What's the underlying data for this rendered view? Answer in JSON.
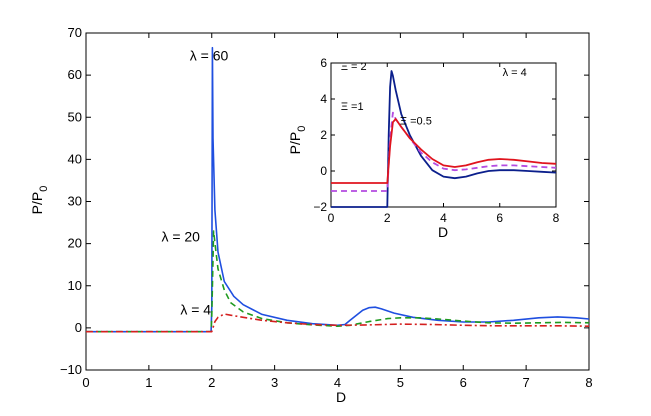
{
  "chart_data": [
    {
      "type": "line",
      "xlabel": "D",
      "ylabel": "P/P",
      "ylabel_sub": "0",
      "xlim": [
        0,
        8
      ],
      "ylim": [
        -10,
        70
      ],
      "xticks": [
        "0",
        "1",
        "2",
        "3",
        "4",
        "5",
        "6",
        "7",
        "8"
      ],
      "yticks": [
        "−10",
        "0",
        "10",
        "20",
        "30",
        "40",
        "50",
        "60",
        "70"
      ],
      "annotations": [
        {
          "text": "λ = 60",
          "x": 1.65,
          "y": 63.5
        },
        {
          "text": "λ = 20",
          "x": 1.2,
          "y": 20.5
        },
        {
          "text": "λ = 4",
          "x": 1.5,
          "y": 3.2
        }
      ],
      "series": [
        {
          "label_ref": "λ = 60",
          "color": "#1f4fe0",
          "dash": "solid",
          "x": [
            0,
            1.99,
            2.0,
            2.01,
            2.02,
            2.05,
            2.1,
            2.2,
            2.35,
            2.5,
            2.8,
            3.2,
            3.6,
            4.0,
            4.12,
            4.2,
            4.3,
            4.4,
            4.5,
            4.6,
            4.7,
            4.9,
            5.2,
            5.6,
            6.0,
            6.4,
            6.8,
            7.2,
            7.5,
            7.8,
            8.0
          ],
          "y": [
            -0.9,
            -0.9,
            5,
            66.5,
            45,
            28,
            18,
            11,
            7.5,
            5.5,
            3.2,
            1.8,
            1.0,
            0.6,
            0.8,
            1.8,
            3.0,
            4.2,
            4.8,
            4.9,
            4.5,
            3.5,
            2.5,
            1.8,
            1.4,
            1.4,
            1.8,
            2.4,
            2.6,
            2.4,
            2.1
          ]
        },
        {
          "label_ref": "λ = 20",
          "color": "#1f9a1f",
          "dash": "dashed",
          "x": [
            0,
            1.99,
            2.0,
            2.03,
            2.06,
            2.1,
            2.2,
            2.3,
            2.5,
            2.8,
            3.2,
            3.6,
            4.0,
            4.2,
            4.5,
            4.8,
            5.0,
            5.3,
            5.6,
            6.0,
            6.4,
            6.8,
            7.2,
            7.6,
            8.0
          ],
          "y": [
            -0.9,
            -0.9,
            3,
            23,
            19,
            14,
            9,
            6,
            3.8,
            2.2,
            1.2,
            0.7,
            0.4,
            0.6,
            1.5,
            2.2,
            2.4,
            2.4,
            2.1,
            1.6,
            1.2,
            1.1,
            1.2,
            1.3,
            1.2
          ]
        },
        {
          "label_ref": "λ = 4",
          "color": "#d42020",
          "dash": "dashdot",
          "x": [
            0,
            1.99,
            2.0,
            2.05,
            2.1,
            2.2,
            2.3,
            2.5,
            2.8,
            3.2,
            3.6,
            4.0,
            4.5,
            5.0,
            5.5,
            6.0,
            6.5,
            7.0,
            7.5,
            8.0
          ],
          "y": [
            -0.9,
            -0.9,
            -0.9,
            1.5,
            2.5,
            3.3,
            3.0,
            2.5,
            1.8,
            1.2,
            0.8,
            0.6,
            0.7,
            0.9,
            0.8,
            0.6,
            0.5,
            0.5,
            0.5,
            0.4
          ]
        }
      ]
    },
    {
      "type": "line",
      "inset": true,
      "xlabel": "D",
      "ylabel": "P/P",
      "ylabel_sub": "0",
      "xlim": [
        0,
        8
      ],
      "ylim": [
        -2,
        7
      ],
      "xticks": [
        "0",
        "2",
        "4",
        "6",
        "8"
      ],
      "yticks": [
        "−2",
        "0",
        "2",
        "4",
        "6"
      ],
      "annotations": [
        {
          "text": "Ξ = 2",
          "x": 0.35,
          "y": 6.55
        },
        {
          "text": "Ξ =1",
          "x": 0.35,
          "y": 4.05
        },
        {
          "text": "Ξ =0.5",
          "x": 2.45,
          "y": 3.15
        },
        {
          "text": "λ = 4",
          "x": 6.1,
          "y": 6.2
        }
      ],
      "series": [
        {
          "label_ref": "Ξ = 2",
          "color": "#0b1f8c",
          "dash": "solid",
          "x": [
            0,
            1.99,
            2.0,
            2.05,
            2.1,
            2.15,
            2.2,
            2.3,
            2.5,
            2.8,
            3.2,
            3.6,
            4.0,
            4.4,
            4.8,
            5.2,
            5.6,
            6.0,
            6.5,
            7.0,
            7.5,
            8.0
          ],
          "y": [
            -2,
            -2,
            -2,
            2.5,
            5.5,
            6.5,
            6.2,
            5.3,
            3.8,
            2.5,
            1.2,
            0.3,
            -0.1,
            -0.2,
            -0.1,
            0.1,
            0.25,
            0.3,
            0.3,
            0.25,
            0.2,
            0.15
          ]
        },
        {
          "label_ref": "Ξ =1",
          "color": "#b44be1",
          "dash": "dashed",
          "x": [
            0,
            1.99,
            2.0,
            2.1,
            2.2,
            2.3,
            2.5,
            2.8,
            3.2,
            3.6,
            4.0,
            4.4,
            4.8,
            5.2,
            5.6,
            6.0,
            6.5,
            7.0,
            7.5,
            8.0
          ],
          "y": [
            -1,
            -1,
            -1,
            2.3,
            3.9,
            3.5,
            3.0,
            2.3,
            1.4,
            0.8,
            0.4,
            0.3,
            0.35,
            0.45,
            0.55,
            0.6,
            0.6,
            0.55,
            0.5,
            0.45
          ]
        },
        {
          "label_ref": "Ξ =0.5",
          "color": "#e0141e",
          "dash": "solid",
          "x": [
            0,
            1.99,
            2.0,
            2.1,
            2.2,
            2.3,
            2.5,
            2.8,
            3.2,
            3.6,
            4.0,
            4.4,
            4.8,
            5.2,
            5.6,
            6.0,
            6.5,
            7.0,
            7.5,
            8.0
          ],
          "y": [
            -0.5,
            -0.5,
            -0.5,
            1.8,
            3.3,
            3.5,
            3.0,
            2.3,
            1.6,
            1.0,
            0.6,
            0.5,
            0.6,
            0.8,
            0.95,
            1.0,
            0.95,
            0.85,
            0.75,
            0.7
          ]
        }
      ]
    }
  ]
}
